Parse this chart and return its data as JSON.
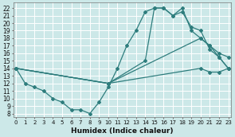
{
  "xlabel": "Humidex (Indice chaleur)",
  "bg_color": "#cce8e8",
  "grid_color": "#ffffff",
  "line_color": "#2e7d7d",
  "x_ticks": [
    0,
    1,
    2,
    3,
    4,
    5,
    6,
    7,
    8,
    9,
    10,
    11,
    12,
    13,
    14,
    15,
    16,
    17,
    18,
    19,
    20,
    21,
    22,
    23
  ],
  "y_ticks": [
    8,
    9,
    10,
    11,
    12,
    13,
    14,
    15,
    16,
    17,
    18,
    19,
    20,
    21,
    22
  ],
  "xlim": [
    -0.3,
    23.3
  ],
  "ylim": [
    7.5,
    22.7
  ],
  "series": [
    {
      "x": [
        0,
        1,
        2,
        3,
        4,
        5,
        6,
        7,
        8,
        9,
        10,
        11,
        12,
        13,
        14,
        15,
        16,
        17,
        18,
        19,
        20,
        21,
        22,
        23
      ],
      "y": [
        14,
        12,
        11.5,
        11,
        10,
        9.5,
        8.5,
        8.5,
        8,
        9.5,
        11.5,
        14,
        17,
        19,
        21.5,
        22,
        22,
        21,
        22,
        19,
        18,
        17,
        15.5,
        14
      ]
    },
    {
      "x": [
        0,
        10,
        14,
        15,
        16,
        17,
        18,
        19,
        20,
        21,
        22,
        23
      ],
      "y": [
        14,
        12,
        15,
        22,
        22,
        21,
        21.5,
        19.5,
        19,
        16.5,
        15.5,
        14
      ]
    },
    {
      "x": [
        0,
        10,
        20,
        21,
        22,
        23
      ],
      "y": [
        14,
        12,
        18,
        17,
        16,
        15.5
      ]
    },
    {
      "x": [
        0,
        10,
        20,
        21,
        22,
        23
      ],
      "y": [
        14,
        12,
        14,
        13.5,
        13.5,
        14
      ]
    }
  ]
}
